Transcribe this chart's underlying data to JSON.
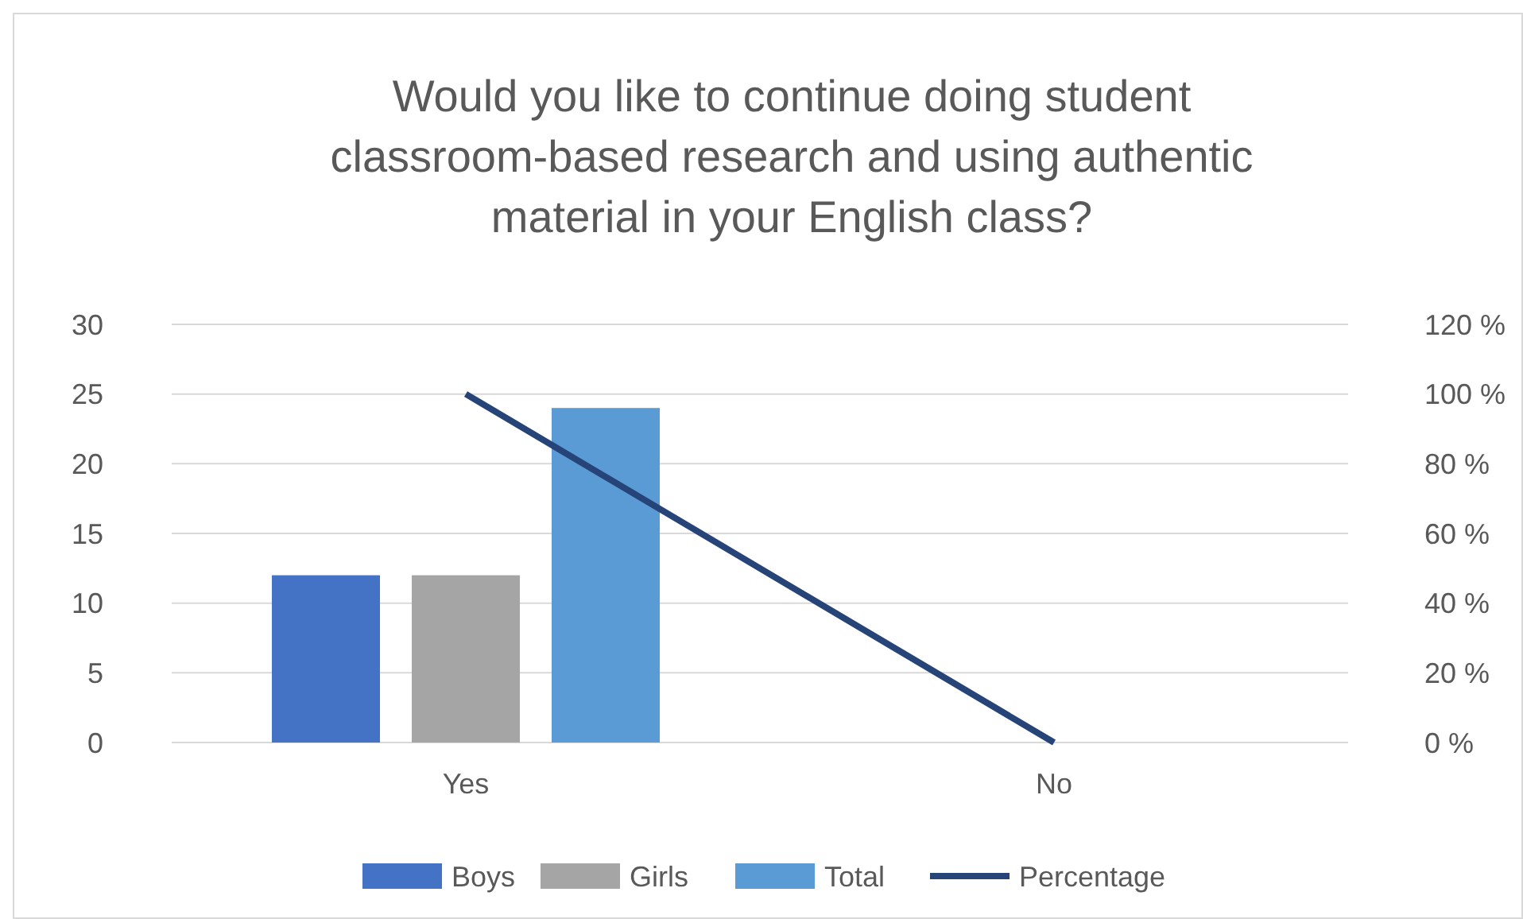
{
  "chart_data": {
    "type": "bar",
    "title": "Would you like to continue doing student classroom-based research and using authentic material in your English class?",
    "categories": [
      "Yes",
      "No"
    ],
    "series": [
      {
        "name": "Boys",
        "color": "#4472c4",
        "values": [
          12,
          0
        ]
      },
      {
        "name": "Girls",
        "color": "#a5a5a5",
        "values": [
          12,
          0
        ]
      },
      {
        "name": "Total",
        "color": "#5b9bd5",
        "values": [
          24,
          0
        ]
      },
      {
        "name": "Percentage",
        "color": "#264478",
        "type": "line",
        "axis": "y2",
        "values": [
          100,
          0
        ]
      }
    ],
    "ylim": [
      0,
      30
    ],
    "yticks": [
      0,
      5,
      10,
      15,
      20,
      25,
      30
    ],
    "y2lim": [
      0,
      120
    ],
    "y2ticks": [
      {
        "value": 0,
        "label": "0 %"
      },
      {
        "value": 20,
        "label": "20 %"
      },
      {
        "value": 40,
        "label": "40 %"
      },
      {
        "value": 60,
        "label": "60 %"
      },
      {
        "value": 80,
        "label": "80 %"
      },
      {
        "value": 100,
        "label": "100 %"
      },
      {
        "value": 120,
        "label": "120 %"
      }
    ],
    "grid": "y",
    "legend": "bottom"
  }
}
